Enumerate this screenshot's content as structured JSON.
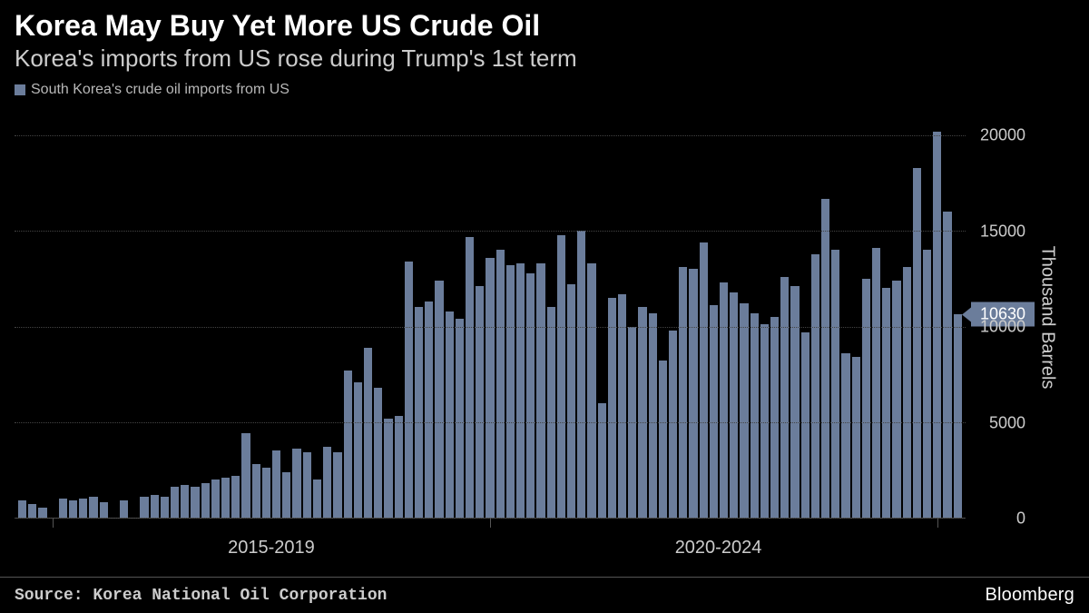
{
  "title": "Korea May Buy Yet More US Crude Oil",
  "subtitle": "Korea's imports from US rose during Trump's 1st term",
  "legend_label": "South Korea's crude oil imports from US",
  "chart": {
    "type": "bar",
    "bar_color": "#6b7d9b",
    "background_color": "#000000",
    "grid_color": "#444444",
    "axis_color": "#555555",
    "text_color": "#cccccc",
    "title_color": "#ffffff",
    "y_axis_title": "Thousand Barrels",
    "ylim": [
      0,
      21000
    ],
    "yticks": [
      0,
      5000,
      10000,
      15000,
      20000
    ],
    "callout_value": 10630,
    "callout_label": "10630",
    "x_ranges": [
      {
        "label": "2015-2019",
        "center_pct": 27,
        "start_pct": 4,
        "end_pct": 50
      },
      {
        "label": "2020-2024",
        "center_pct": 74,
        "start_pct": 50,
        "end_pct": 97
      }
    ],
    "values": [
      900,
      700,
      500,
      0,
      1000,
      900,
      1000,
      1100,
      800,
      0,
      900,
      0,
      1100,
      1200,
      1100,
      1600,
      1700,
      1600,
      1800,
      2000,
      2100,
      2200,
      4400,
      2800,
      2600,
      3500,
      2400,
      3600,
      3400,
      2000,
      3700,
      3400,
      7700,
      7100,
      8900,
      6800,
      5200,
      5300,
      13400,
      11000,
      11300,
      12400,
      10800,
      10400,
      14700,
      12100,
      13600,
      14000,
      13200,
      13300,
      12800,
      13300,
      11000,
      14800,
      12200,
      15000,
      13300,
      6000,
      11500,
      11700,
      10000,
      11000,
      10700,
      8200,
      9800,
      13100,
      13000,
      14400,
      11100,
      12300,
      11800,
      11200,
      10700,
      10100,
      10500,
      12600,
      12100,
      9700,
      13800,
      16700,
      14000,
      8600,
      8400,
      12500,
      14100,
      12000,
      12400,
      13100,
      18300,
      14000,
      20200,
      16000,
      10630
    ]
  },
  "source": "Source: Korea National Oil Corporation",
  "brand": "Bloomberg"
}
